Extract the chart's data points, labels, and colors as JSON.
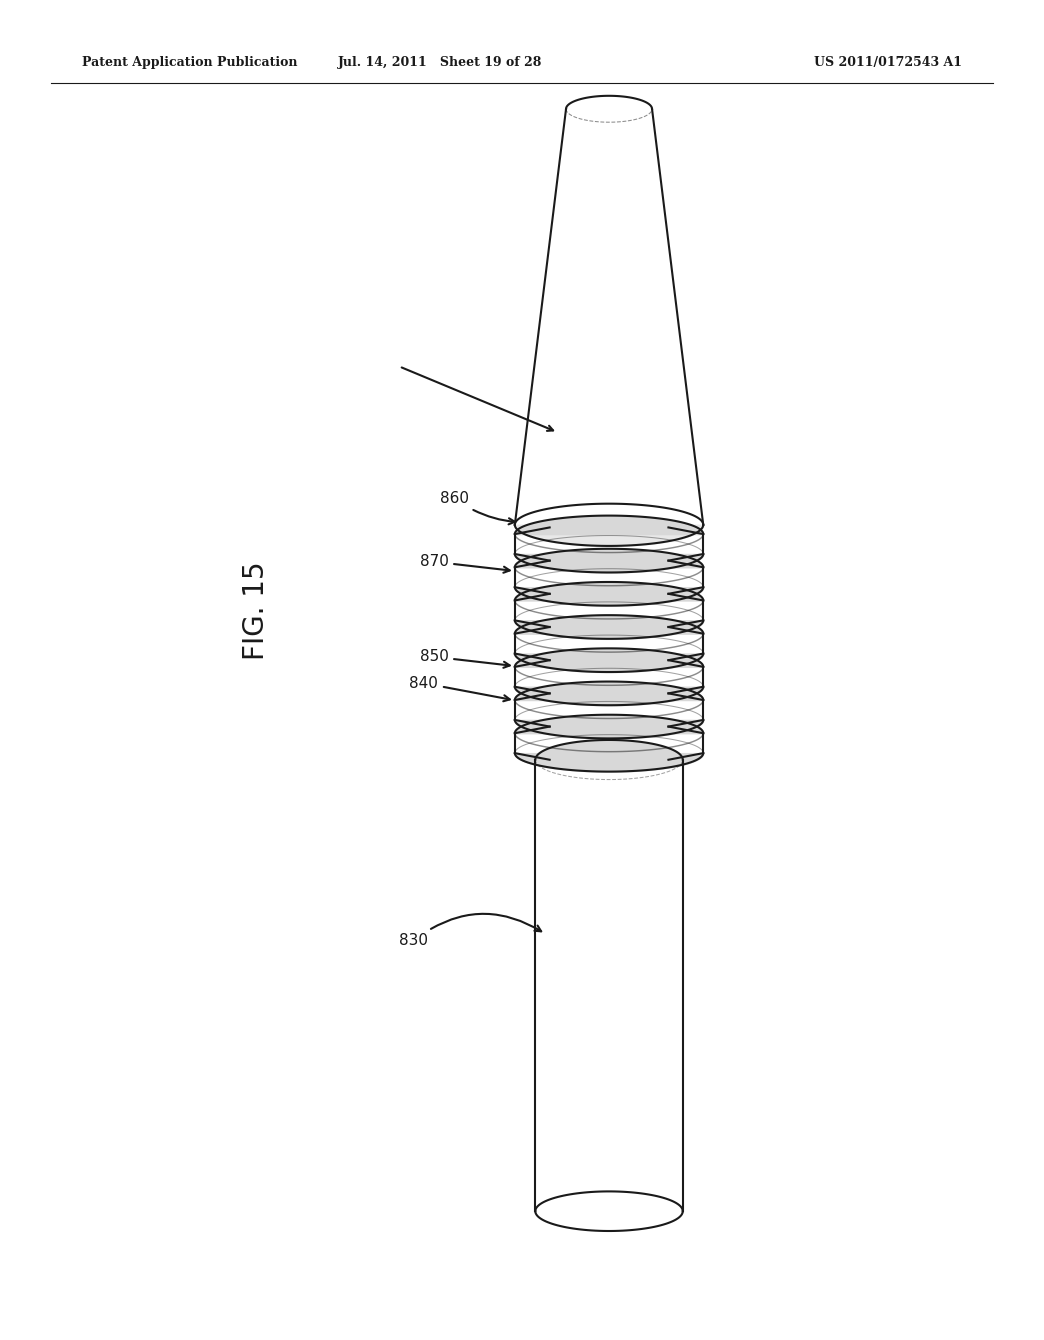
{
  "header_left": "Patent Application Publication",
  "header_mid": "Jul. 14, 2011   Sheet 19 of 28",
  "header_right": "US 2011/0172543 A1",
  "fig_label": "FIG. 15",
  "bg_color": "#ffffff",
  "line_color": "#1a1a1a",
  "lw": 1.5
}
